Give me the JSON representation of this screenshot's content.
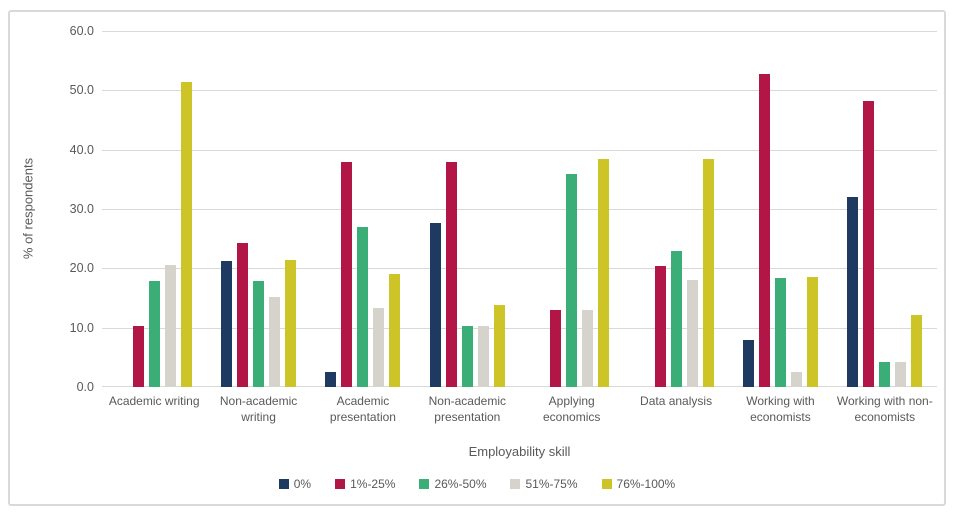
{
  "chart_data": {
    "type": "bar",
    "title": "",
    "xlabel": "Employability skill",
    "ylabel": "% of respondents",
    "ylim": [
      0,
      60
    ],
    "ytick_step": 10,
    "yticks": [
      "60.0",
      "50.0",
      "40.0",
      "30.0",
      "20.0",
      "10.0",
      "0.0"
    ],
    "grid": true,
    "legend_position": "bottom",
    "categories": [
      "Academic writing",
      "Non-academic writing",
      "Academic presentation",
      "Non-academic presentation",
      "Applying economics",
      "Data analysis",
      "Working with economists",
      "Working with non-economists"
    ],
    "series": [
      {
        "name": "0%",
        "color": "#1f3a61",
        "values": [
          0,
          21.2,
          2.6,
          27.6,
          0,
          0,
          7.9,
          32.1
        ]
      },
      {
        "name": "1%-25%",
        "color": "#b21646",
        "values": [
          10.3,
          24.3,
          38.0,
          38.0,
          12.9,
          20.4,
          52.8,
          48.2
        ]
      },
      {
        "name": "26%-50%",
        "color": "#3bad76",
        "values": [
          17.9,
          17.9,
          26.9,
          10.3,
          35.9,
          23.0,
          18.3,
          4.2
        ]
      },
      {
        "name": "51%-75%",
        "color": "#d6d3cc",
        "values": [
          20.5,
          15.2,
          13.4,
          10.3,
          12.9,
          18.1,
          2.5,
          4.3
        ]
      },
      {
        "name": "76%-100%",
        "color": "#cdc428",
        "values": [
          51.4,
          21.4,
          19.0,
          13.8,
          38.5,
          38.5,
          18.5,
          12.1
        ]
      }
    ],
    "colors": {
      "text": "#595959",
      "gridline": "#d9d9d9",
      "border": "#d9d9d9",
      "background": "#ffffff"
    }
  }
}
